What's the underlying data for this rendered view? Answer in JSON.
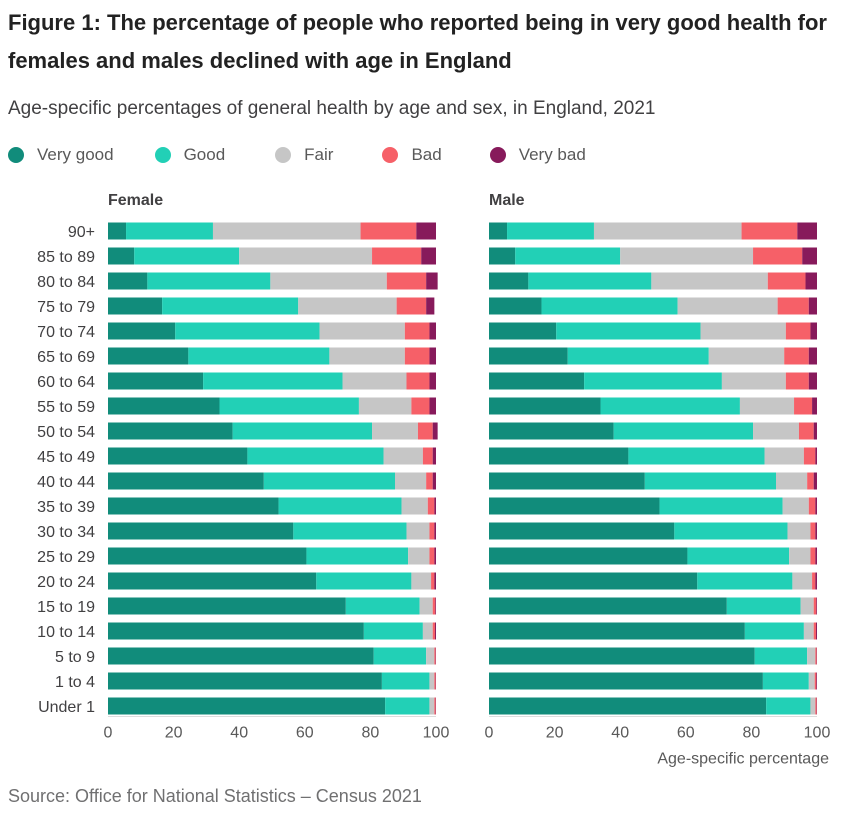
{
  "title": "Figure 1: The percentage of people who reported being in very good health for females and males declined with age in England",
  "subtitle": "Age-specific percentages of general health by age and sex, in England, 2021",
  "source": "Source: Office for National Statistics – Census 2021",
  "legend": [
    {
      "label": "Very good",
      "color": "#118c7b"
    },
    {
      "label": "Good",
      "color": "#22d0b6"
    },
    {
      "label": "Fair",
      "color": "#c6c6c6"
    },
    {
      "label": "Bad",
      "color": "#f66068"
    },
    {
      "label": "Very bad",
      "color": "#871a5b"
    }
  ],
  "chart_data": [
    {
      "type": "bar",
      "orientation": "horizontal",
      "stacked": true,
      "title": "Female",
      "xlabel": "",
      "xlim": [
        0,
        100
      ],
      "xticks": [
        0,
        20,
        40,
        60,
        80,
        100
      ],
      "grid": false,
      "categories": [
        "90+",
        "85 to 89",
        "80 to 84",
        "75 to 79",
        "70 to 74",
        "65 to 69",
        "60 to 64",
        "55 to 59",
        "50 to 54",
        "45 to 49",
        "40 to 44",
        "35 to 39",
        "30 to 34",
        "25 to 29",
        "20 to 24",
        "15 to 19",
        "10 to 14",
        "5 to 9",
        "1 to 4",
        "Under 1"
      ],
      "series": [
        {
          "name": "Very good",
          "color": "#118c7b",
          "values": [
            5.5,
            8,
            12,
            16.5,
            20.5,
            24.5,
            29,
            34,
            38,
            42.5,
            47.5,
            52,
            56.5,
            60.5,
            63.5,
            72.5,
            78,
            81,
            83.5,
            84.5
          ]
        },
        {
          "name": "Good",
          "color": "#22d0b6",
          "values": [
            26.5,
            32,
            37.5,
            41.5,
            44,
            43,
            42.5,
            42.5,
            42.5,
            41.5,
            40,
            37.5,
            34.5,
            31,
            29,
            22.5,
            18,
            16,
            14.5,
            13.5
          ]
        },
        {
          "name": "Fair",
          "color": "#c6c6c6",
          "values": [
            45,
            40.5,
            35.5,
            30,
            26,
            23,
            19.5,
            16,
            14,
            12,
            9.5,
            8,
            7,
            6.5,
            6,
            4,
            3,
            2.5,
            1.5,
            1.5
          ]
        },
        {
          "name": "Bad",
          "color": "#f66068",
          "values": [
            17,
            15,
            12,
            9,
            7.5,
            7.5,
            7,
            5.5,
            4.5,
            3,
            2,
            2,
            1.5,
            1.5,
            1,
            0.8,
            0.7,
            0.4,
            0.4,
            0.4
          ]
        },
        {
          "name": "Very bad",
          "color": "#871a5b",
          "values": [
            6,
            4.5,
            3.5,
            2.5,
            2,
            2,
            2,
            2,
            1.5,
            1,
            1,
            0.5,
            0.5,
            0.5,
            0.5,
            0.2,
            0.3,
            0.1,
            0.1,
            0.1
          ]
        }
      ]
    },
    {
      "type": "bar",
      "orientation": "horizontal",
      "stacked": true,
      "title": "Male",
      "xlabel": "Age-specific percentage",
      "xlim": [
        0,
        100
      ],
      "xticks": [
        0,
        20,
        40,
        60,
        80,
        100
      ],
      "grid": false,
      "categories": [
        "90+",
        "85 to 89",
        "80 to 84",
        "75 to 79",
        "70 to 74",
        "65 to 69",
        "60 to 64",
        "55 to 59",
        "50 to 54",
        "45 to 49",
        "40 to 44",
        "35 to 39",
        "30 to 34",
        "25 to 29",
        "20 to 24",
        "15 to 19",
        "10 to 14",
        "5 to 9",
        "1 to 4",
        "Under 1"
      ],
      "series": [
        {
          "name": "Very good",
          "color": "#118c7b",
          "values": [
            5.5,
            8,
            12,
            16,
            20.5,
            24,
            29,
            34,
            38,
            42.5,
            47.5,
            52,
            56.5,
            60.5,
            63.5,
            72.5,
            78,
            81,
            83.5,
            84.5
          ]
        },
        {
          "name": "Good",
          "color": "#22d0b6",
          "values": [
            26.5,
            32,
            37.5,
            41.5,
            44,
            43,
            42,
            42.5,
            42.5,
            41.5,
            40,
            37.5,
            34.5,
            31,
            29,
            22.5,
            18,
            16,
            14,
            13.5
          ]
        },
        {
          "name": "Fair",
          "color": "#c6c6c6",
          "values": [
            45,
            40.5,
            35.5,
            30.5,
            26,
            23,
            19.5,
            16.5,
            14,
            12,
            9.5,
            8,
            7,
            6.5,
            6,
            4,
            3,
            2.5,
            1.8,
            1.5
          ]
        },
        {
          "name": "Bad",
          "color": "#f66068",
          "values": [
            17,
            15,
            11.5,
            9.5,
            7.5,
            7.5,
            7,
            5.5,
            4.5,
            3.5,
            2,
            2,
            1.5,
            1.5,
            1,
            0.8,
            0.7,
            0.4,
            0.5,
            0.4
          ]
        },
        {
          "name": "Very bad",
          "color": "#871a5b",
          "values": [
            6,
            4.5,
            3.5,
            2.5,
            2,
            2.5,
            2.5,
            1.5,
            1,
            0.5,
            1,
            0.5,
            0.5,
            0.5,
            0.5,
            0.2,
            0.3,
            0.1,
            0.2,
            0.1
          ]
        }
      ]
    }
  ]
}
